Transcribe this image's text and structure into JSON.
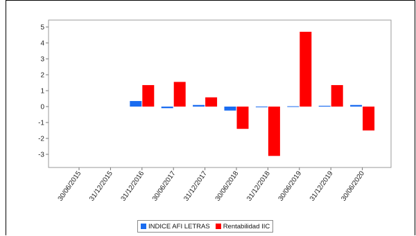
{
  "chart_data": {
    "type": "bar",
    "categories": [
      "30/06/2015",
      "31/12/2015",
      "31/12/2016",
      "30/06/2017",
      "31/12/2017",
      "30/06/2018",
      "31/12/2018",
      "30/06/2019",
      "31/12/2019",
      "30/06/2020"
    ],
    "series": [
      {
        "name": "INDICE AFI LETRAS",
        "color": "#1a6cf0",
        "values": [
          null,
          null,
          0.35,
          -0.1,
          0.1,
          -0.25,
          -0.02,
          0.02,
          0.05,
          0.1
        ]
      },
      {
        "name": "Rentabilidad IIC",
        "color": "#ff0000",
        "values": [
          null,
          null,
          1.35,
          1.55,
          0.58,
          -1.4,
          -3.1,
          4.7,
          1.35,
          -1.5
        ]
      }
    ],
    "yticks": [
      "5",
      "4",
      "3",
      "2",
      "1",
      "0",
      "-1",
      "-2",
      "-3"
    ],
    "ylim": [
      -3.8,
      5.3
    ],
    "grid": false,
    "legend_position": "bottom"
  }
}
